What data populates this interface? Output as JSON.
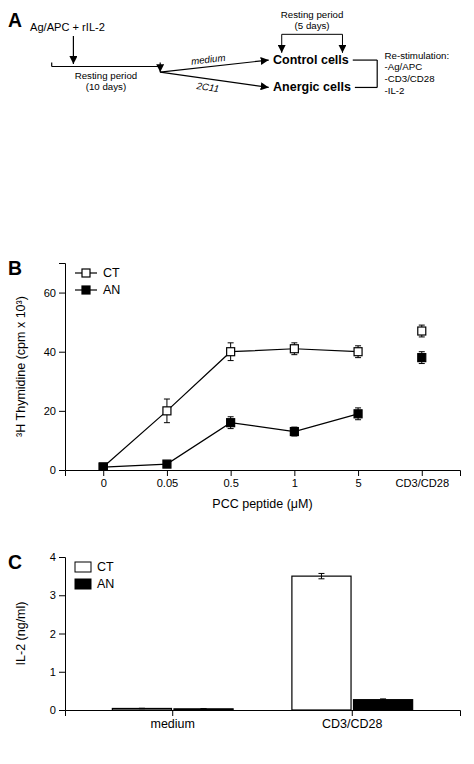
{
  "chart_data": [
    {
      "type": "diagram",
      "title": "A",
      "annotations": [
        "Ag/APC +  rIL-2",
        "Resting period\n(10 days)",
        "medium",
        "2C11",
        "Control cells",
        "Anergic cells",
        "Resting period\n(5 days)",
        "Re-stimulation:\n-Ag/APC\n-CD3/CD28\n-IL-2"
      ]
    },
    {
      "type": "line",
      "title": "B",
      "xlabel": "PCC peptide (μM)",
      "ylabel": "³H Thymidine (cpm x 10³)",
      "categories": [
        "0",
        "0.05",
        "0.5",
        "1",
        "5",
        "CD3/CD28"
      ],
      "series": [
        {
          "name": "CT",
          "color": "#000000",
          "marker": "open-square",
          "line_style": "solid",
          "values": [
            1,
            20,
            40,
            41,
            40,
            null
          ],
          "errors": [
            0.5,
            4,
            3,
            2,
            2,
            null
          ]
        },
        {
          "color": "#000000",
          "marker": "open-square",
          "line_style": "none",
          "values": [
            null,
            null,
            null,
            null,
            null,
            47
          ],
          "errors": [
            null,
            null,
            null,
            null,
            null,
            2
          ]
        },
        {
          "name": "AN",
          "color": "#000000",
          "marker": "square",
          "line_style": "solid",
          "values": [
            1,
            2,
            16,
            13,
            19,
            null
          ],
          "errors": [
            0.5,
            0.5,
            2,
            1.5,
            2,
            null
          ]
        },
        {
          "color": "#000000",
          "marker": "square",
          "line_style": "none",
          "values": [
            null,
            null,
            null,
            null,
            null,
            38
          ],
          "errors": [
            null,
            null,
            null,
            null,
            null,
            2
          ]
        }
      ],
      "ylim": [
        0,
        70
      ],
      "yticks": [
        0,
        20,
        40,
        60
      ],
      "legend": "upper-left",
      "grid": false
    },
    {
      "type": "bar",
      "title": "C",
      "ylabel": "IL-2 (ng/ml)",
      "categories": [
        "medium",
        "CD3/CD28"
      ],
      "series": [
        {
          "name": "CT",
          "color": "#ffffff",
          "values": [
            0.04,
            3.5
          ],
          "errors": [
            0.005,
            0.07
          ]
        },
        {
          "name": "AN",
          "color": "#000000",
          "values": [
            0.03,
            0.27
          ],
          "errors": [
            0.005,
            0.02
          ]
        }
      ],
      "ylim": [
        0,
        4
      ],
      "yticks": [
        0,
        1,
        2,
        3,
        4
      ],
      "legend": "upper-left",
      "grid": false
    }
  ]
}
